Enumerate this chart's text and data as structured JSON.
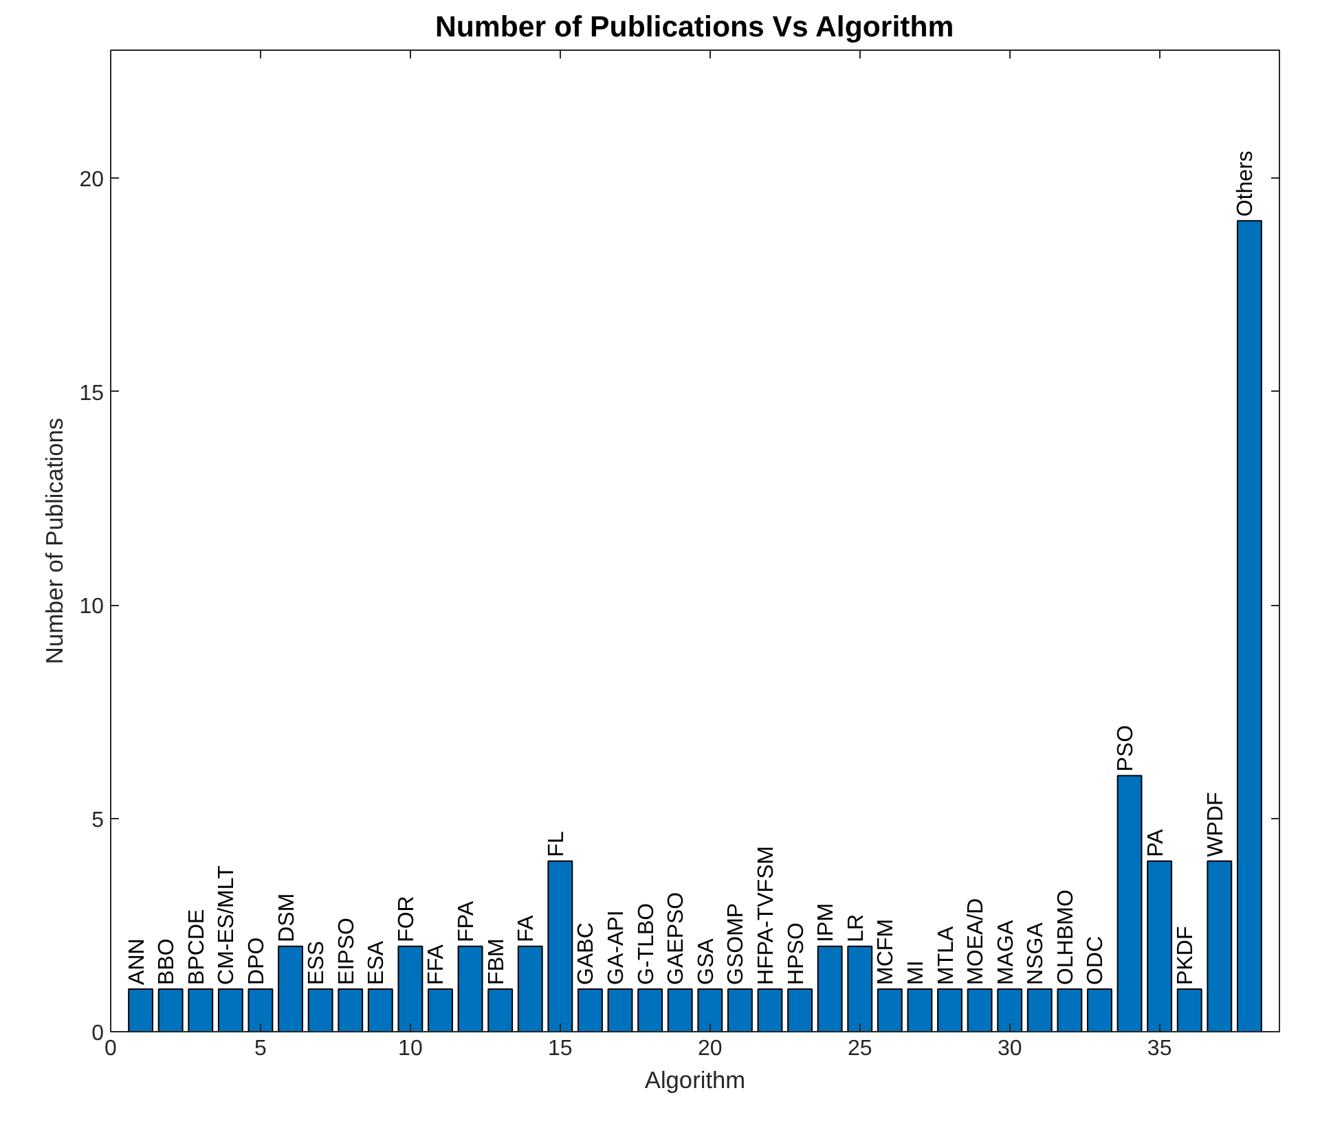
{
  "chart_data": {
    "type": "bar",
    "title": "Number of Publications Vs Algorithm",
    "xlabel": "Algorithm",
    "ylabel": "Number of Publications",
    "x": [
      1,
      2,
      3,
      4,
      5,
      6,
      7,
      8,
      9,
      10,
      11,
      12,
      13,
      14,
      15,
      16,
      17,
      18,
      19,
      20,
      21,
      22,
      23,
      24,
      25,
      26,
      27,
      28,
      29,
      30,
      31,
      32,
      33,
      34,
      35,
      36,
      37,
      38
    ],
    "values": [
      1,
      1,
      1,
      1,
      1,
      2,
      1,
      1,
      1,
      2,
      1,
      2,
      1,
      2,
      4,
      1,
      1,
      1,
      1,
      1,
      1,
      1,
      1,
      2,
      2,
      1,
      1,
      1,
      1,
      1,
      1,
      1,
      1,
      6,
      4,
      1,
      4,
      19
    ],
    "color": "#0072bd",
    "annotations": [
      {
        "text": "ANN",
        "x": 1,
        "y": 1
      },
      {
        "text": "BBO",
        "x": 2,
        "y": 1
      },
      {
        "text": "BPCDE",
        "x": 3,
        "y": 1
      },
      {
        "text": "CM-ES/MLT",
        "x": 4,
        "y": 1
      },
      {
        "text": "DPO",
        "x": 5,
        "y": 1
      },
      {
        "text": "DSM",
        "x": 6,
        "y": 2
      },
      {
        "text": "ESS",
        "x": 7,
        "y": 1
      },
      {
        "text": "EIPSO",
        "x": 8,
        "y": 1
      },
      {
        "text": "ESA",
        "x": 9,
        "y": 1
      },
      {
        "text": "FOR",
        "x": 10,
        "y": 2
      },
      {
        "text": "FFA",
        "x": 11,
        "y": 1
      },
      {
        "text": "FPA",
        "x": 12,
        "y": 2
      },
      {
        "text": "FBM",
        "x": 13,
        "y": 1
      },
      {
        "text": "FA",
        "x": 14,
        "y": 2
      },
      {
        "text": "FL",
        "x": 15,
        "y": 4
      },
      {
        "text": "GABC",
        "x": 16,
        "y": 1
      },
      {
        "text": "GA-API",
        "x": 17,
        "y": 1
      },
      {
        "text": "G-TLBO",
        "x": 18,
        "y": 1
      },
      {
        "text": "GAEPSO",
        "x": 19,
        "y": 1
      },
      {
        "text": "GSA",
        "x": 20,
        "y": 1
      },
      {
        "text": "GSOMP",
        "x": 21,
        "y": 1
      },
      {
        "text": "HFPA-TVFSM",
        "x": 22,
        "y": 1
      },
      {
        "text": "HPSO",
        "x": 23,
        "y": 1
      },
      {
        "text": "IPM",
        "x": 24,
        "y": 2
      },
      {
        "text": "LR",
        "x": 25,
        "y": 2
      },
      {
        "text": "MCFM",
        "x": 26,
        "y": 1
      },
      {
        "text": "MI",
        "x": 27,
        "y": 1
      },
      {
        "text": "MTLA",
        "x": 28,
        "y": 1
      },
      {
        "text": "MOEA/D",
        "x": 29,
        "y": 1
      },
      {
        "text": "MAGA",
        "x": 30,
        "y": 1
      },
      {
        "text": "NSGA",
        "x": 31,
        "y": 1
      },
      {
        "text": "OLHBMO",
        "x": 32,
        "y": 1
      },
      {
        "text": "ODC",
        "x": 33,
        "y": 1
      },
      {
        "text": "PSO",
        "x": 34,
        "y": 6
      },
      {
        "text": "PA",
        "x": 35,
        "y": 4
      },
      {
        "text": "PKDF",
        "x": 36,
        "y": 1
      },
      {
        "text": "WPDF",
        "x": 37,
        "y": 4
      },
      {
        "text": "Others",
        "x": 38,
        "y": 19
      }
    ],
    "xlim": [
      0,
      39
    ],
    "xticks": [
      0,
      5,
      10,
      15,
      20,
      25,
      30,
      35
    ],
    "ylim": [
      0,
      23
    ],
    "yticks": [
      0,
      5,
      10,
      15,
      20
    ],
    "grid": false
  }
}
